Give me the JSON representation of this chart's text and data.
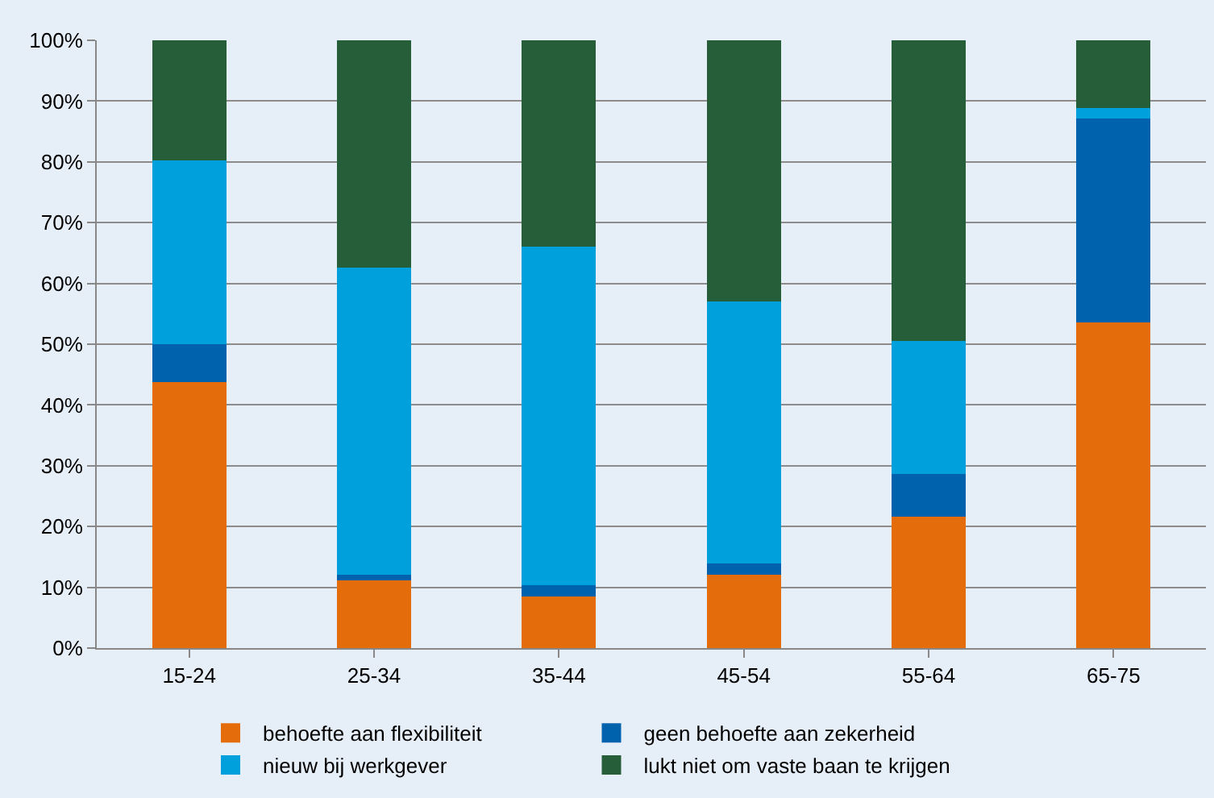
{
  "chart_data": {
    "type": "bar",
    "stacked": true,
    "categories": [
      "15-24",
      "25-34",
      "35-44",
      "45-54",
      "55-64",
      "65-75"
    ],
    "series": [
      {
        "name": "behoefte aan flexibiliteit",
        "color": "#e46c0a",
        "values": [
          43.8,
          11.1,
          8.5,
          12.1,
          21.6,
          53.6
        ]
      },
      {
        "name": "geen behoefte aan zekerheid",
        "color": "#0062ac",
        "values": [
          6.2,
          1.0,
          1.8,
          1.8,
          7.0,
          33.5
        ]
      },
      {
        "name": "nieuw bij werkgever",
        "color": "#00a0dc",
        "values": [
          30.2,
          50.5,
          55.7,
          43.1,
          21.9,
          1.8
        ]
      },
      {
        "name": "lukt niet om vaste baan te krijgen",
        "color": "#255e38",
        "values": [
          19.8,
          37.4,
          34.0,
          43.0,
          49.5,
          11.1
        ]
      }
    ],
    "ylim": [
      0,
      100
    ],
    "yticks": [
      {
        "value": 0,
        "label": "0%"
      },
      {
        "value": 10,
        "label": "10%"
      },
      {
        "value": 20,
        "label": "20%"
      },
      {
        "value": 30,
        "label": "30%"
      },
      {
        "value": 40,
        "label": "40%"
      },
      {
        "value": 50,
        "label": "50%"
      },
      {
        "value": 60,
        "label": "60%"
      },
      {
        "value": 70,
        "label": "70%"
      },
      {
        "value": 80,
        "label": "80%"
      },
      {
        "value": 90,
        "label": "90%"
      },
      {
        "value": 100,
        "label": "100%"
      }
    ],
    "grid": "y",
    "legend": "bottom"
  }
}
